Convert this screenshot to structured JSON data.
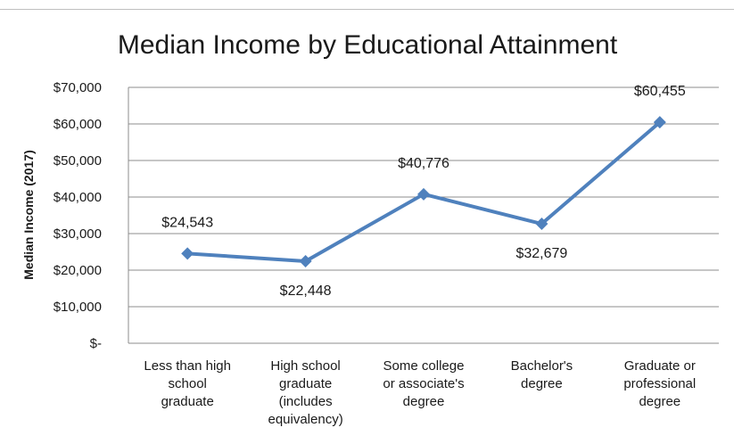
{
  "chart_data": {
    "type": "line",
    "title": "Median Income by Educational Attainment",
    "ylabel": "Median Income (2017)",
    "xlabel": "",
    "categories": [
      [
        "Less than high",
        "school",
        "graduate"
      ],
      [
        "High school",
        "graduate",
        "(includes",
        "equivalency)"
      ],
      [
        "Some college",
        "or associate's",
        "degree"
      ],
      [
        "Bachelor's",
        "degree"
      ],
      [
        "Graduate or",
        "professional",
        "degree"
      ]
    ],
    "values": [
      24543,
      22448,
      40776,
      32679,
      60455
    ],
    "data_labels": [
      "$24,543",
      "$22,448",
      "$40,776",
      "$32,679",
      "$60,455"
    ],
    "label_position": [
      "above",
      "below",
      "above",
      "below",
      "above"
    ],
    "ylim": [
      0,
      70000
    ],
    "yticks": [
      0,
      10000,
      20000,
      30000,
      40000,
      50000,
      60000,
      70000
    ],
    "ytick_labels": [
      "$-",
      "$10,000",
      "$20,000",
      "$30,000",
      "$40,000",
      "$50,000",
      "$60,000",
      "$70,000"
    ],
    "grid": true,
    "line_color": "#4f81bd",
    "grid_color": "#8c8c8c"
  }
}
